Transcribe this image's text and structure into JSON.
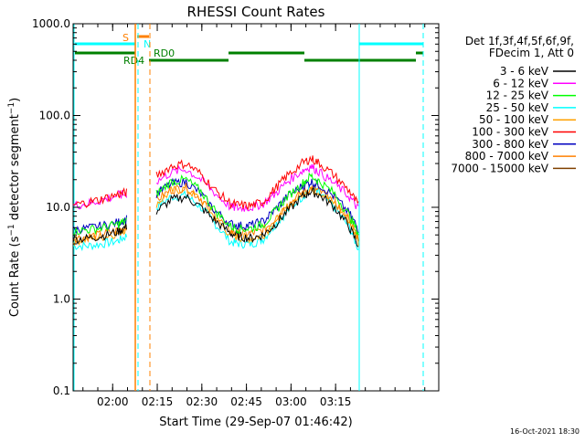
{
  "chart_data": {
    "type": "line",
    "title": "RHESSI Count Rates",
    "xlabel": "Start Time (29-Sep-07 01:46:42)",
    "ylabel_main": "Count Rate (s",
    "ylabel_sup": "−1",
    "ylabel_rest": " detector segment",
    "ylabel_sup2": "−1",
    "ylabel_end": ")",
    "y_scale": "log",
    "ylim": [
      0.1,
      1000.0
    ],
    "y_ticks": [
      {
        "value": 0.1,
        "label": "0.1"
      },
      {
        "value": 1.0,
        "label": "1.0"
      },
      {
        "value": 10.0,
        "label": "10.0"
      },
      {
        "value": 100.0,
        "label": "100.0"
      },
      {
        "value": 1000.0,
        "label": "1000.0"
      }
    ],
    "x_unit": "minutes after 01:46:42",
    "xlim": [
      0,
      123
    ],
    "x_ticks": [
      {
        "value": 13.3,
        "label": "02:00"
      },
      {
        "value": 28.3,
        "label": "02:15"
      },
      {
        "value": 43.3,
        "label": "02:30"
      },
      {
        "value": 58.3,
        "label": "02:45"
      },
      {
        "value": 73.3,
        "label": "03:00"
      },
      {
        "value": 88.3,
        "label": "03:15"
      }
    ],
    "legend_placement": "right",
    "legend_header": [
      "Det 1f,3f,4f,5f,6f,9f,",
      "FDecim 1, Att 0"
    ],
    "series": [
      {
        "name": "3 - 6 keV",
        "color": "#000000",
        "values": [
          [
            0,
            4.5
          ],
          [
            5,
            4.6
          ],
          [
            10,
            4.9
          ],
          [
            15,
            5.4
          ],
          [
            18,
            6.2
          ],
          [
            19,
            null
          ],
          [
            28,
            9
          ],
          [
            33,
            12
          ],
          [
            38,
            13
          ],
          [
            43,
            10
          ],
          [
            48,
            7
          ],
          [
            53,
            5.2
          ],
          [
            56,
            4.8
          ],
          [
            60,
            4.6
          ],
          [
            64,
            5
          ],
          [
            68,
            6.5
          ],
          [
            72,
            9
          ],
          [
            77,
            13
          ],
          [
            80,
            15
          ],
          [
            83,
            13.5
          ],
          [
            88,
            10
          ],
          [
            93,
            6
          ],
          [
            96,
            3.8
          ]
        ]
      },
      {
        "name": "6 - 12 keV",
        "color": "#ff00ff",
        "values": [
          [
            0,
            10.4
          ],
          [
            5,
            11
          ],
          [
            10,
            12
          ],
          [
            15,
            13.5
          ],
          [
            18,
            14
          ],
          [
            19,
            null
          ],
          [
            28,
            19
          ],
          [
            33,
            24
          ],
          [
            38,
            26
          ],
          [
            43,
            20
          ],
          [
            48,
            14
          ],
          [
            53,
            10
          ],
          [
            56,
            9.8
          ],
          [
            60,
            10
          ],
          [
            64,
            11
          ],
          [
            68,
            14
          ],
          [
            72,
            19
          ],
          [
            77,
            25
          ],
          [
            80,
            28
          ],
          [
            83,
            24
          ],
          [
            88,
            18
          ],
          [
            93,
            13
          ],
          [
            96,
            9.5
          ]
        ]
      },
      {
        "name": "12 - 25 keV",
        "color": "#00ff00",
        "values": [
          [
            0,
            5.5
          ],
          [
            5,
            5.7
          ],
          [
            10,
            6
          ],
          [
            15,
            6.5
          ],
          [
            18,
            7.2
          ],
          [
            19,
            null
          ],
          [
            28,
            14
          ],
          [
            33,
            19
          ],
          [
            38,
            20
          ],
          [
            43,
            15
          ],
          [
            48,
            9
          ],
          [
            53,
            6.2
          ],
          [
            56,
            5.8
          ],
          [
            60,
            5.9
          ],
          [
            64,
            6.5
          ],
          [
            68,
            9
          ],
          [
            72,
            13
          ],
          [
            77,
            18
          ],
          [
            80,
            22
          ],
          [
            83,
            19
          ],
          [
            88,
            14
          ],
          [
            93,
            8
          ],
          [
            96,
            5.2
          ]
        ]
      },
      {
        "name": "25 - 50 keV",
        "color": "#00ffff",
        "values": [
          [
            0,
            3.8
          ],
          [
            5,
            3.8
          ],
          [
            10,
            4
          ],
          [
            15,
            4.3
          ],
          [
            18,
            4.9
          ],
          [
            19,
            null
          ],
          [
            28,
            10
          ],
          [
            33,
            13
          ],
          [
            38,
            13.5
          ],
          [
            43,
            10
          ],
          [
            48,
            6.5
          ],
          [
            53,
            4.2
          ],
          [
            56,
            4
          ],
          [
            60,
            4
          ],
          [
            64,
            4.5
          ],
          [
            68,
            6.5
          ],
          [
            72,
            9
          ],
          [
            77,
            13
          ],
          [
            80,
            16.5
          ],
          [
            83,
            14
          ],
          [
            88,
            10
          ],
          [
            93,
            6
          ],
          [
            96,
            3.5
          ]
        ]
      },
      {
        "name": "50 - 100 keV",
        "color": "#ffa000",
        "values": [
          [
            0,
            4.3
          ],
          [
            5,
            4.5
          ],
          [
            10,
            4.8
          ],
          [
            15,
            5.2
          ],
          [
            18,
            5.9
          ],
          [
            19,
            null
          ],
          [
            28,
            11
          ],
          [
            33,
            15
          ],
          [
            38,
            16
          ],
          [
            43,
            12
          ],
          [
            48,
            7.5
          ],
          [
            53,
            5
          ],
          [
            56,
            4.7
          ],
          [
            60,
            4.6
          ],
          [
            64,
            5
          ],
          [
            68,
            7
          ],
          [
            72,
            10
          ],
          [
            77,
            14
          ],
          [
            80,
            16
          ],
          [
            83,
            14.5
          ],
          [
            88,
            11
          ],
          [
            93,
            7
          ],
          [
            96,
            4.2
          ]
        ]
      },
      {
        "name": "100 - 300 keV",
        "color": "#ff0000",
        "values": [
          [
            0,
            10.6
          ],
          [
            5,
            11.3
          ],
          [
            10,
            12.4
          ],
          [
            15,
            13.8
          ],
          [
            18,
            14.5
          ],
          [
            19,
            null
          ],
          [
            28,
            22
          ],
          [
            33,
            28
          ],
          [
            38,
            30
          ],
          [
            43,
            23
          ],
          [
            48,
            15
          ],
          [
            53,
            11
          ],
          [
            56,
            10.5
          ],
          [
            60,
            10.4
          ],
          [
            64,
            11.5
          ],
          [
            68,
            16
          ],
          [
            72,
            22
          ],
          [
            77,
            30
          ],
          [
            80,
            34
          ],
          [
            83,
            30
          ],
          [
            88,
            22
          ],
          [
            93,
            15
          ],
          [
            96,
            10.5
          ]
        ]
      },
      {
        "name": "300 - 800 keV",
        "color": "#0000c0",
        "values": [
          [
            0,
            5.7
          ],
          [
            5,
            5.9
          ],
          [
            10,
            6.3
          ],
          [
            15,
            6.8
          ],
          [
            18,
            7.5
          ],
          [
            19,
            null
          ],
          [
            28,
            14
          ],
          [
            33,
            18
          ],
          [
            38,
            19
          ],
          [
            43,
            14
          ],
          [
            48,
            9
          ],
          [
            53,
            6.6
          ],
          [
            56,
            6.3
          ],
          [
            60,
            6.4
          ],
          [
            64,
            7
          ],
          [
            68,
            9.5
          ],
          [
            72,
            13
          ],
          [
            77,
            17
          ],
          [
            80,
            19
          ],
          [
            83,
            17.5
          ],
          [
            88,
            13
          ],
          [
            93,
            8.5
          ],
          [
            96,
            5.8
          ]
        ]
      },
      {
        "name": "800 - 7000 keV",
        "color": "#ff8000",
        "values": [
          [
            0,
            4.6
          ],
          [
            5,
            4.8
          ],
          [
            10,
            5.1
          ],
          [
            15,
            5.6
          ],
          [
            18,
            6.3
          ],
          [
            19,
            null
          ],
          [
            28,
            12
          ],
          [
            33,
            15.5
          ],
          [
            38,
            16.5
          ],
          [
            43,
            12.5
          ],
          [
            48,
            8
          ],
          [
            53,
            5.5
          ],
          [
            56,
            5.2
          ],
          [
            60,
            5.2
          ],
          [
            64,
            5.6
          ],
          [
            68,
            7.5
          ],
          [
            72,
            10.5
          ],
          [
            77,
            14.5
          ],
          [
            80,
            16
          ],
          [
            83,
            15
          ],
          [
            88,
            11.5
          ],
          [
            93,
            7.5
          ],
          [
            96,
            4.6
          ]
        ]
      },
      {
        "name": "7000 - 15000 keV",
        "color": "#804000",
        "values": []
      }
    ],
    "annotations": {
      "timestamp": "16-Oct-2021 18:30",
      "flag_s_label": "S",
      "flag_n_label": "N",
      "flag_rd0_label": "RD0",
      "flag_rd4_label": "RD4"
    }
  }
}
